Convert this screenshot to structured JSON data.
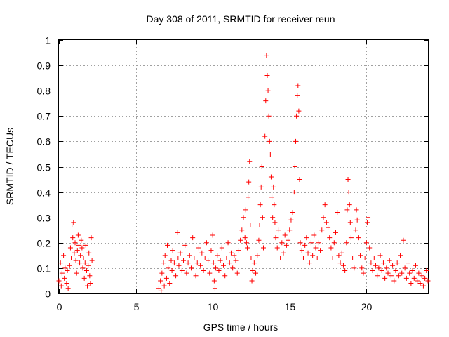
{
  "chart_data": {
    "type": "scatter",
    "title": "Day 308 of 2011, SRMTID for receiver reun",
    "xlabel": "GPS time / hours",
    "ylabel": "SRMTID / TECUs",
    "xlim": [
      0,
      24
    ],
    "ylim": [
      0,
      1
    ],
    "xticks": [
      0,
      5,
      10,
      15,
      20
    ],
    "xtick_labels": [
      "0",
      "5",
      "10",
      "15",
      "20"
    ],
    "yticks": [
      0,
      0.1,
      0.2,
      0.3,
      0.4,
      0.5,
      0.6,
      0.7,
      0.8,
      0.9,
      1
    ],
    "ytick_labels": [
      "0",
      "0.1",
      "0.2",
      "0.3",
      "0.4",
      "0.5",
      "0.6",
      "0.7",
      "0.8",
      "0.9",
      "1"
    ],
    "grid": true,
    "marker": "+",
    "color": "#ff0000",
    "series": [
      {
        "name": "SRMTID",
        "points": [
          [
            0.0,
            0.05
          ],
          [
            0.1,
            0.12
          ],
          [
            0.15,
            0.03
          ],
          [
            0.2,
            0.08
          ],
          [
            0.3,
            0.15
          ],
          [
            0.35,
            0.06
          ],
          [
            0.4,
            0.1
          ],
          [
            0.5,
            0.04
          ],
          [
            0.55,
            0.09
          ],
          [
            0.6,
            0.02
          ],
          [
            0.7,
            0.11
          ],
          [
            0.75,
            0.18
          ],
          [
            0.8,
            0.14
          ],
          [
            0.85,
            0.27
          ],
          [
            0.9,
            0.22
          ],
          [
            0.95,
            0.28
          ],
          [
            1.0,
            0.16
          ],
          [
            1.05,
            0.2
          ],
          [
            1.1,
            0.13
          ],
          [
            1.15,
            0.08
          ],
          [
            1.2,
            0.17
          ],
          [
            1.25,
            0.23
          ],
          [
            1.3,
            0.19
          ],
          [
            1.35,
            0.12
          ],
          [
            1.4,
            0.15
          ],
          [
            1.45,
            0.21
          ],
          [
            1.5,
            0.18
          ],
          [
            1.55,
            0.1
          ],
          [
            1.6,
            0.14
          ],
          [
            1.65,
            0.06
          ],
          [
            1.7,
            0.12
          ],
          [
            1.75,
            0.19
          ],
          [
            1.8,
            0.09
          ],
          [
            1.85,
            0.03
          ],
          [
            1.9,
            0.11
          ],
          [
            1.95,
            0.16
          ],
          [
            2.0,
            0.07
          ],
          [
            2.05,
            0.04
          ],
          [
            2.1,
            0.22
          ],
          [
            2.15,
            0.13
          ],
          [
            6.5,
            0.02
          ],
          [
            6.6,
            0.05
          ],
          [
            6.65,
            0.01
          ],
          [
            6.7,
            0.08
          ],
          [
            6.8,
            0.12
          ],
          [
            6.85,
            0.03
          ],
          [
            6.9,
            0.15
          ],
          [
            7.0,
            0.06
          ],
          [
            7.05,
            0.19
          ],
          [
            7.1,
            0.1
          ],
          [
            7.2,
            0.04
          ],
          [
            7.3,
            0.13
          ],
          [
            7.35,
            0.09
          ],
          [
            7.4,
            0.17
          ],
          [
            7.5,
            0.12
          ],
          [
            7.6,
            0.07
          ],
          [
            7.7,
            0.24
          ],
          [
            7.75,
            0.14
          ],
          [
            7.8,
            0.11
          ],
          [
            7.9,
            0.16
          ],
          [
            8.0,
            0.09
          ],
          [
            8.1,
            0.13
          ],
          [
            8.2,
            0.19
          ],
          [
            8.3,
            0.08
          ],
          [
            8.4,
            0.12
          ],
          [
            8.5,
            0.15
          ],
          [
            8.6,
            0.1
          ],
          [
            8.7,
            0.22
          ],
          [
            8.8,
            0.14
          ],
          [
            8.9,
            0.07
          ],
          [
            9.0,
            0.12
          ],
          [
            9.1,
            0.18
          ],
          [
            9.2,
            0.11
          ],
          [
            9.3,
            0.16
          ],
          [
            9.4,
            0.09
          ],
          [
            9.5,
            0.14
          ],
          [
            9.6,
            0.2
          ],
          [
            9.7,
            0.13
          ],
          [
            9.8,
            0.08
          ],
          [
            9.9,
            0.17
          ],
          [
            10.0,
            0.23
          ],
          [
            10.05,
            0.12
          ],
          [
            10.1,
            0.05
          ],
          [
            10.15,
            0.02
          ],
          [
            10.2,
            0.1
          ],
          [
            10.3,
            0.15
          ],
          [
            10.4,
            0.09
          ],
          [
            10.5,
            0.13
          ],
          [
            10.6,
            0.18
          ],
          [
            10.7,
            0.11
          ],
          [
            10.8,
            0.07
          ],
          [
            10.9,
            0.14
          ],
          [
            11.0,
            0.2
          ],
          [
            11.1,
            0.12
          ],
          [
            11.2,
            0.16
          ],
          [
            11.3,
            0.1
          ],
          [
            11.4,
            0.15
          ],
          [
            11.5,
            0.13
          ],
          [
            11.6,
            0.08
          ],
          [
            11.7,
            0.17
          ],
          [
            11.8,
            0.21
          ],
          [
            11.9,
            0.25
          ],
          [
            12.0,
            0.3
          ],
          [
            12.1,
            0.22
          ],
          [
            12.15,
            0.33
          ],
          [
            12.2,
            0.2
          ],
          [
            12.25,
            0.18
          ],
          [
            12.3,
            0.38
          ],
          [
            12.35,
            0.44
          ],
          [
            12.4,
            0.52
          ],
          [
            12.45,
            0.27
          ],
          [
            12.5,
            0.14
          ],
          [
            12.55,
            0.05
          ],
          [
            12.6,
            0.09
          ],
          [
            12.7,
            0.12
          ],
          [
            12.8,
            0.08
          ],
          [
            12.9,
            0.15
          ],
          [
            13.0,
            0.21
          ],
          [
            13.05,
            0.27
          ],
          [
            13.1,
            0.35
          ],
          [
            13.15,
            0.42
          ],
          [
            13.2,
            0.5
          ],
          [
            13.25,
            0.3
          ],
          [
            13.3,
            0.18
          ],
          [
            13.4,
            0.62
          ],
          [
            13.45,
            0.76
          ],
          [
            13.5,
            0.94
          ],
          [
            13.55,
            0.86
          ],
          [
            13.6,
            0.8
          ],
          [
            13.65,
            0.7
          ],
          [
            13.7,
            0.6
          ],
          [
            13.75,
            0.55
          ],
          [
            13.8,
            0.46
          ],
          [
            13.85,
            0.38
          ],
          [
            13.9,
            0.3
          ],
          [
            13.95,
            0.42
          ],
          [
            14.0,
            0.35
          ],
          [
            14.05,
            0.28
          ],
          [
            14.1,
            0.22
          ],
          [
            14.2,
            0.18
          ],
          [
            14.3,
            0.25
          ],
          [
            14.4,
            0.14
          ],
          [
            14.5,
            0.2
          ],
          [
            14.6,
            0.16
          ],
          [
            14.7,
            0.23
          ],
          [
            14.8,
            0.19
          ],
          [
            14.9,
            0.21
          ],
          [
            15.0,
            0.25
          ],
          [
            15.1,
            0.29
          ],
          [
            15.2,
            0.32
          ],
          [
            15.3,
            0.4
          ],
          [
            15.35,
            0.5
          ],
          [
            15.4,
            0.6
          ],
          [
            15.45,
            0.7
          ],
          [
            15.5,
            0.78
          ],
          [
            15.55,
            0.82
          ],
          [
            15.6,
            0.72
          ],
          [
            15.65,
            0.45
          ],
          [
            15.7,
            0.2
          ],
          [
            15.8,
            0.17
          ],
          [
            15.9,
            0.14
          ],
          [
            16.0,
            0.19
          ],
          [
            16.1,
            0.22
          ],
          [
            16.2,
            0.16
          ],
          [
            16.3,
            0.12
          ],
          [
            16.4,
            0.2
          ],
          [
            16.5,
            0.15
          ],
          [
            16.6,
            0.23
          ],
          [
            16.7,
            0.18
          ],
          [
            16.8,
            0.14
          ],
          [
            16.9,
            0.2
          ],
          [
            17.0,
            0.17
          ],
          [
            17.1,
            0.25
          ],
          [
            17.2,
            0.3
          ],
          [
            17.3,
            0.35
          ],
          [
            17.4,
            0.28
          ],
          [
            17.5,
            0.26
          ],
          [
            17.6,
            0.22
          ],
          [
            17.7,
            0.18
          ],
          [
            17.8,
            0.14
          ],
          [
            17.9,
            0.2
          ],
          [
            18.0,
            0.24
          ],
          [
            18.1,
            0.32
          ],
          [
            18.2,
            0.15
          ],
          [
            18.3,
            0.12
          ],
          [
            18.4,
            0.16
          ],
          [
            18.5,
            0.11
          ],
          [
            18.6,
            0.09
          ],
          [
            18.7,
            0.2
          ],
          [
            18.75,
            0.33
          ],
          [
            18.8,
            0.45
          ],
          [
            18.85,
            0.4
          ],
          [
            18.9,
            0.35
          ],
          [
            18.95,
            0.28
          ],
          [
            19.0,
            0.22
          ],
          [
            19.1,
            0.14
          ],
          [
            19.2,
            0.1
          ],
          [
            19.3,
            0.25
          ],
          [
            19.35,
            0.33
          ],
          [
            19.4,
            0.29
          ],
          [
            19.5,
            0.22
          ],
          [
            19.6,
            0.15
          ],
          [
            19.7,
            0.1
          ],
          [
            19.8,
            0.08
          ],
          [
            19.9,
            0.14
          ],
          [
            20.0,
            0.2
          ],
          [
            20.05,
            0.28
          ],
          [
            20.1,
            0.3
          ],
          [
            20.2,
            0.18
          ],
          [
            20.3,
            0.12
          ],
          [
            20.4,
            0.09
          ],
          [
            20.5,
            0.14
          ],
          [
            20.6,
            0.11
          ],
          [
            20.7,
            0.07
          ],
          [
            20.8,
            0.1
          ],
          [
            20.9,
            0.15
          ],
          [
            21.0,
            0.09
          ],
          [
            21.1,
            0.12
          ],
          [
            21.2,
            0.06
          ],
          [
            21.3,
            0.1
          ],
          [
            21.4,
            0.08
          ],
          [
            21.5,
            0.13
          ],
          [
            21.6,
            0.07
          ],
          [
            21.7,
            0.11
          ],
          [
            21.8,
            0.05
          ],
          [
            21.9,
            0.09
          ],
          [
            22.0,
            0.12
          ],
          [
            22.1,
            0.07
          ],
          [
            22.2,
            0.15
          ],
          [
            22.3,
            0.08
          ],
          [
            22.4,
            0.21
          ],
          [
            22.5,
            0.1
          ],
          [
            22.6,
            0.06
          ],
          [
            22.7,
            0.12
          ],
          [
            22.8,
            0.08
          ],
          [
            22.9,
            0.04
          ],
          [
            23.0,
            0.09
          ],
          [
            23.1,
            0.06
          ],
          [
            23.2,
            0.11
          ],
          [
            23.3,
            0.05
          ],
          [
            23.4,
            0.08
          ],
          [
            23.5,
            0.04
          ],
          [
            23.6,
            0.07
          ],
          [
            23.7,
            0.03
          ],
          [
            23.8,
            0.06
          ],
          [
            23.9,
            0.09
          ],
          [
            24.0,
            0.05
          ]
        ]
      }
    ]
  }
}
